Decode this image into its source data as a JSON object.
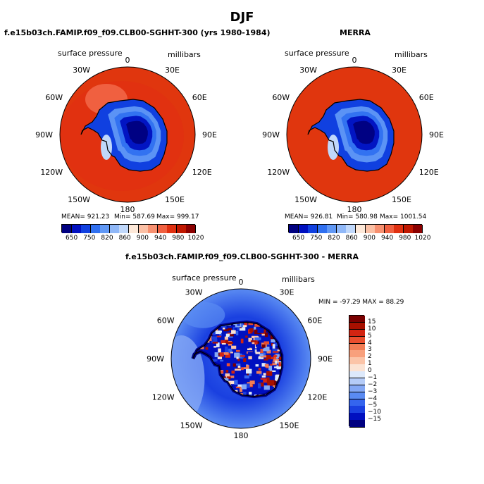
{
  "page_title": "DJF",
  "colors": {
    "land_outline": "#000000",
    "ocean_high": "#e0360e",
    "abs_scale": [
      "#000080",
      "#0010c0",
      "#1040e0",
      "#3070f0",
      "#6098f5",
      "#90b8f8",
      "#c0d8fb",
      "#fde8d8",
      "#fbc0a5",
      "#f79070",
      "#f06040",
      "#e03010",
      "#c01800",
      "#8b0000"
    ],
    "diff_scale": [
      "#000080",
      "#0010c0",
      "#1a40e0",
      "#3565ee",
      "#5a8bf2",
      "#84a8f5",
      "#b5ccf8",
      "#dde9fb",
      "#fbe3d4",
      "#fbc4a8",
      "#f8a07c",
      "#f27d55",
      "#ea4e2e",
      "#d32512",
      "#a81000",
      "#7a0000"
    ]
  },
  "chart_data": [
    {
      "type": "heatmap",
      "title": "f.e15b03ch.FAMIP.f09_f09.CLB00-SGHHT-300 (yrs 1980-1984)",
      "left_label": "surface pressure",
      "right_label": "millibars",
      "projection": "south polar stereographic",
      "lon_labels": [
        "0",
        "30E",
        "60E",
        "90E",
        "120E",
        "150E",
        "180",
        "150W",
        "120W",
        "90W",
        "60W",
        "30W"
      ],
      "stats": {
        "mean": "MEAN= 921.23",
        "min": "Min= 587.69",
        "max": "Max= 999.17"
      },
      "colorbar_ticks": [
        "650",
        "750",
        "820",
        "860",
        "900",
        "940",
        "980",
        "1020"
      ]
    },
    {
      "type": "heatmap",
      "title": "MERRA",
      "left_label": "surface pressure",
      "right_label": "millibars",
      "projection": "south polar stereographic",
      "lon_labels": [
        "0",
        "30E",
        "60E",
        "90E",
        "120E",
        "150E",
        "180",
        "150W",
        "120W",
        "90W",
        "60W",
        "30W"
      ],
      "stats": {
        "mean": "MEAN= 926.81",
        "min": "Min= 580.98",
        "max": "Max= 1001.54"
      },
      "colorbar_ticks": [
        "650",
        "750",
        "820",
        "860",
        "900",
        "940",
        "980",
        "1020"
      ]
    },
    {
      "type": "heatmap",
      "title": "f.e15b03ch.FAMIP.f09_f09.CLB00-SGHHT-300 - MERRA",
      "left_label": "surface pressure",
      "right_label": "millibars",
      "projection": "south polar stereographic",
      "lon_labels": [
        "0",
        "30E",
        "60E",
        "90E",
        "120E",
        "150E",
        "180",
        "150W",
        "120W",
        "90W",
        "60W",
        "30W"
      ],
      "minmax": "MIN = -97.29 MAX = 88.29",
      "colorbar_ticks": [
        "15",
        "10",
        "5",
        "4",
        "3",
        "2",
        "1",
        "0",
        "-1",
        "-2",
        "-3",
        "-4",
        "-5",
        "-10",
        "-15"
      ]
    }
  ]
}
